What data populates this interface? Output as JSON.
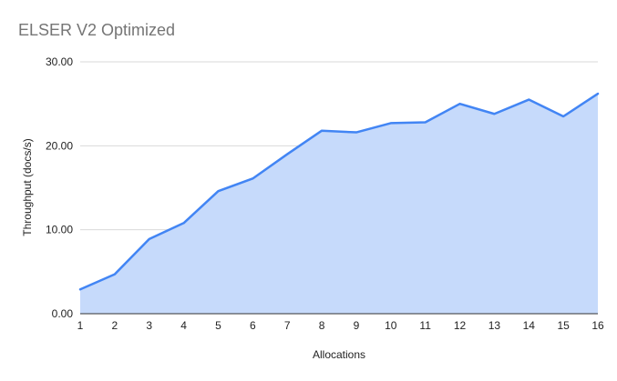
{
  "title": "ELSER V2 Optimized",
  "colors": {
    "line": "#4285f4",
    "fill": "#c6dafb",
    "grid": "#d9d9d9",
    "axis": "#333333",
    "title_text": "#757575",
    "tick_text": "#222222",
    "background": "#ffffff"
  },
  "chart_data": {
    "type": "area",
    "title": "ELSER V2 Optimized",
    "xlabel": "Allocations",
    "ylabel": "Throughput (docs/s)",
    "categories": [
      1,
      2,
      3,
      4,
      5,
      6,
      7,
      8,
      9,
      10,
      11,
      12,
      13,
      14,
      15,
      16
    ],
    "values": [
      2.9,
      4.7,
      8.9,
      10.8,
      14.6,
      16.1,
      19.0,
      21.8,
      21.6,
      22.7,
      22.8,
      25.0,
      23.8,
      25.5,
      23.5,
      26.2
    ],
    "ylim": [
      0,
      30
    ],
    "y_ticks": [
      0,
      10,
      20,
      30
    ],
    "y_tick_labels": [
      "0.00",
      "10.00",
      "20.00",
      "30.00"
    ],
    "grid": true,
    "legend": "none"
  }
}
